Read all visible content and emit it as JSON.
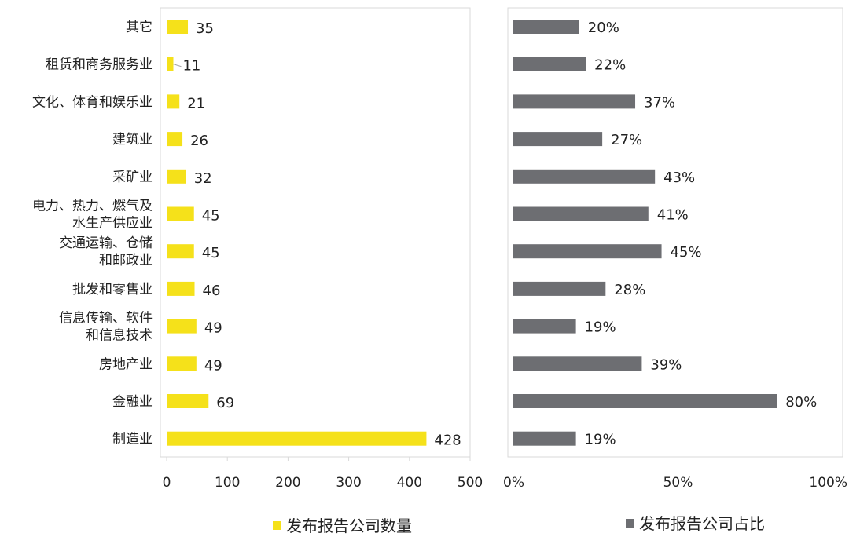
{
  "chart_data": [
    {
      "type": "bar",
      "orientation": "horizontal",
      "categories": [
        "其它",
        "租赁和商务服务业",
        "文化、体育和娱乐业",
        "建筑业",
        "采矿业",
        "电力、热力、燃气及水生产供应业",
        "交通运输、仓储和邮政业",
        "批发和零售业",
        "信息传输、软件和信息技术",
        "房地产业",
        "金融业",
        "制造业"
      ],
      "category_lines": [
        [
          "其它"
        ],
        [
          "租赁和商务服务业"
        ],
        [
          "文化、体育和娱乐业"
        ],
        [
          "建筑业"
        ],
        [
          "采矿业"
        ],
        [
          "电力、热力、燃气及",
          "水生产供应业"
        ],
        [
          "交通运输、仓储",
          "和邮政业"
        ],
        [
          "批发和零售业"
        ],
        [
          "信息传输、软件",
          "和信息技术"
        ],
        [
          "房地产业"
        ],
        [
          "金融业"
        ],
        [
          "制造业"
        ]
      ],
      "series": [
        {
          "name": "发布报告公司数量",
          "color": "#f5e11a",
          "values": [
            35,
            11,
            21,
            26,
            32,
            45,
            45,
            46,
            49,
            49,
            69,
            428
          ]
        }
      ],
      "value_labels": [
        "35",
        "11",
        "21",
        "26",
        "32",
        "45",
        "45",
        "46",
        "49",
        "49",
        "69",
        "428"
      ],
      "xlim": [
        0,
        500
      ],
      "xticks": [
        "0",
        "100",
        "200",
        "300",
        "400",
        "500"
      ],
      "legend_position": "bottom",
      "grid": false
    },
    {
      "type": "bar",
      "orientation": "horizontal",
      "categories": [
        "其它",
        "租赁和商务服务业",
        "文化、体育和娱乐业",
        "建筑业",
        "采矿业",
        "电力、热力、燃气及水生产供应业",
        "交通运输、仓储和邮政业",
        "批发和零售业",
        "信息传输、软件和信息技术",
        "房地产业",
        "金融业",
        "制造业"
      ],
      "series": [
        {
          "name": "发布报告公司占比",
          "color": "#6d6e72",
          "values": [
            0.2,
            0.22,
            0.37,
            0.27,
            0.43,
            0.41,
            0.45,
            0.28,
            0.19,
            0.39,
            0.8,
            0.19
          ]
        }
      ],
      "value_labels": [
        "20%",
        "22%",
        "37%",
        "27%",
        "43%",
        "41%",
        "45%",
        "28%",
        "19%",
        "39%",
        "80%",
        "19%"
      ],
      "xlim": [
        0,
        1
      ],
      "xticks": [
        "0%",
        "50%",
        "100%"
      ],
      "legend_position": "bottom",
      "grid": false
    }
  ]
}
